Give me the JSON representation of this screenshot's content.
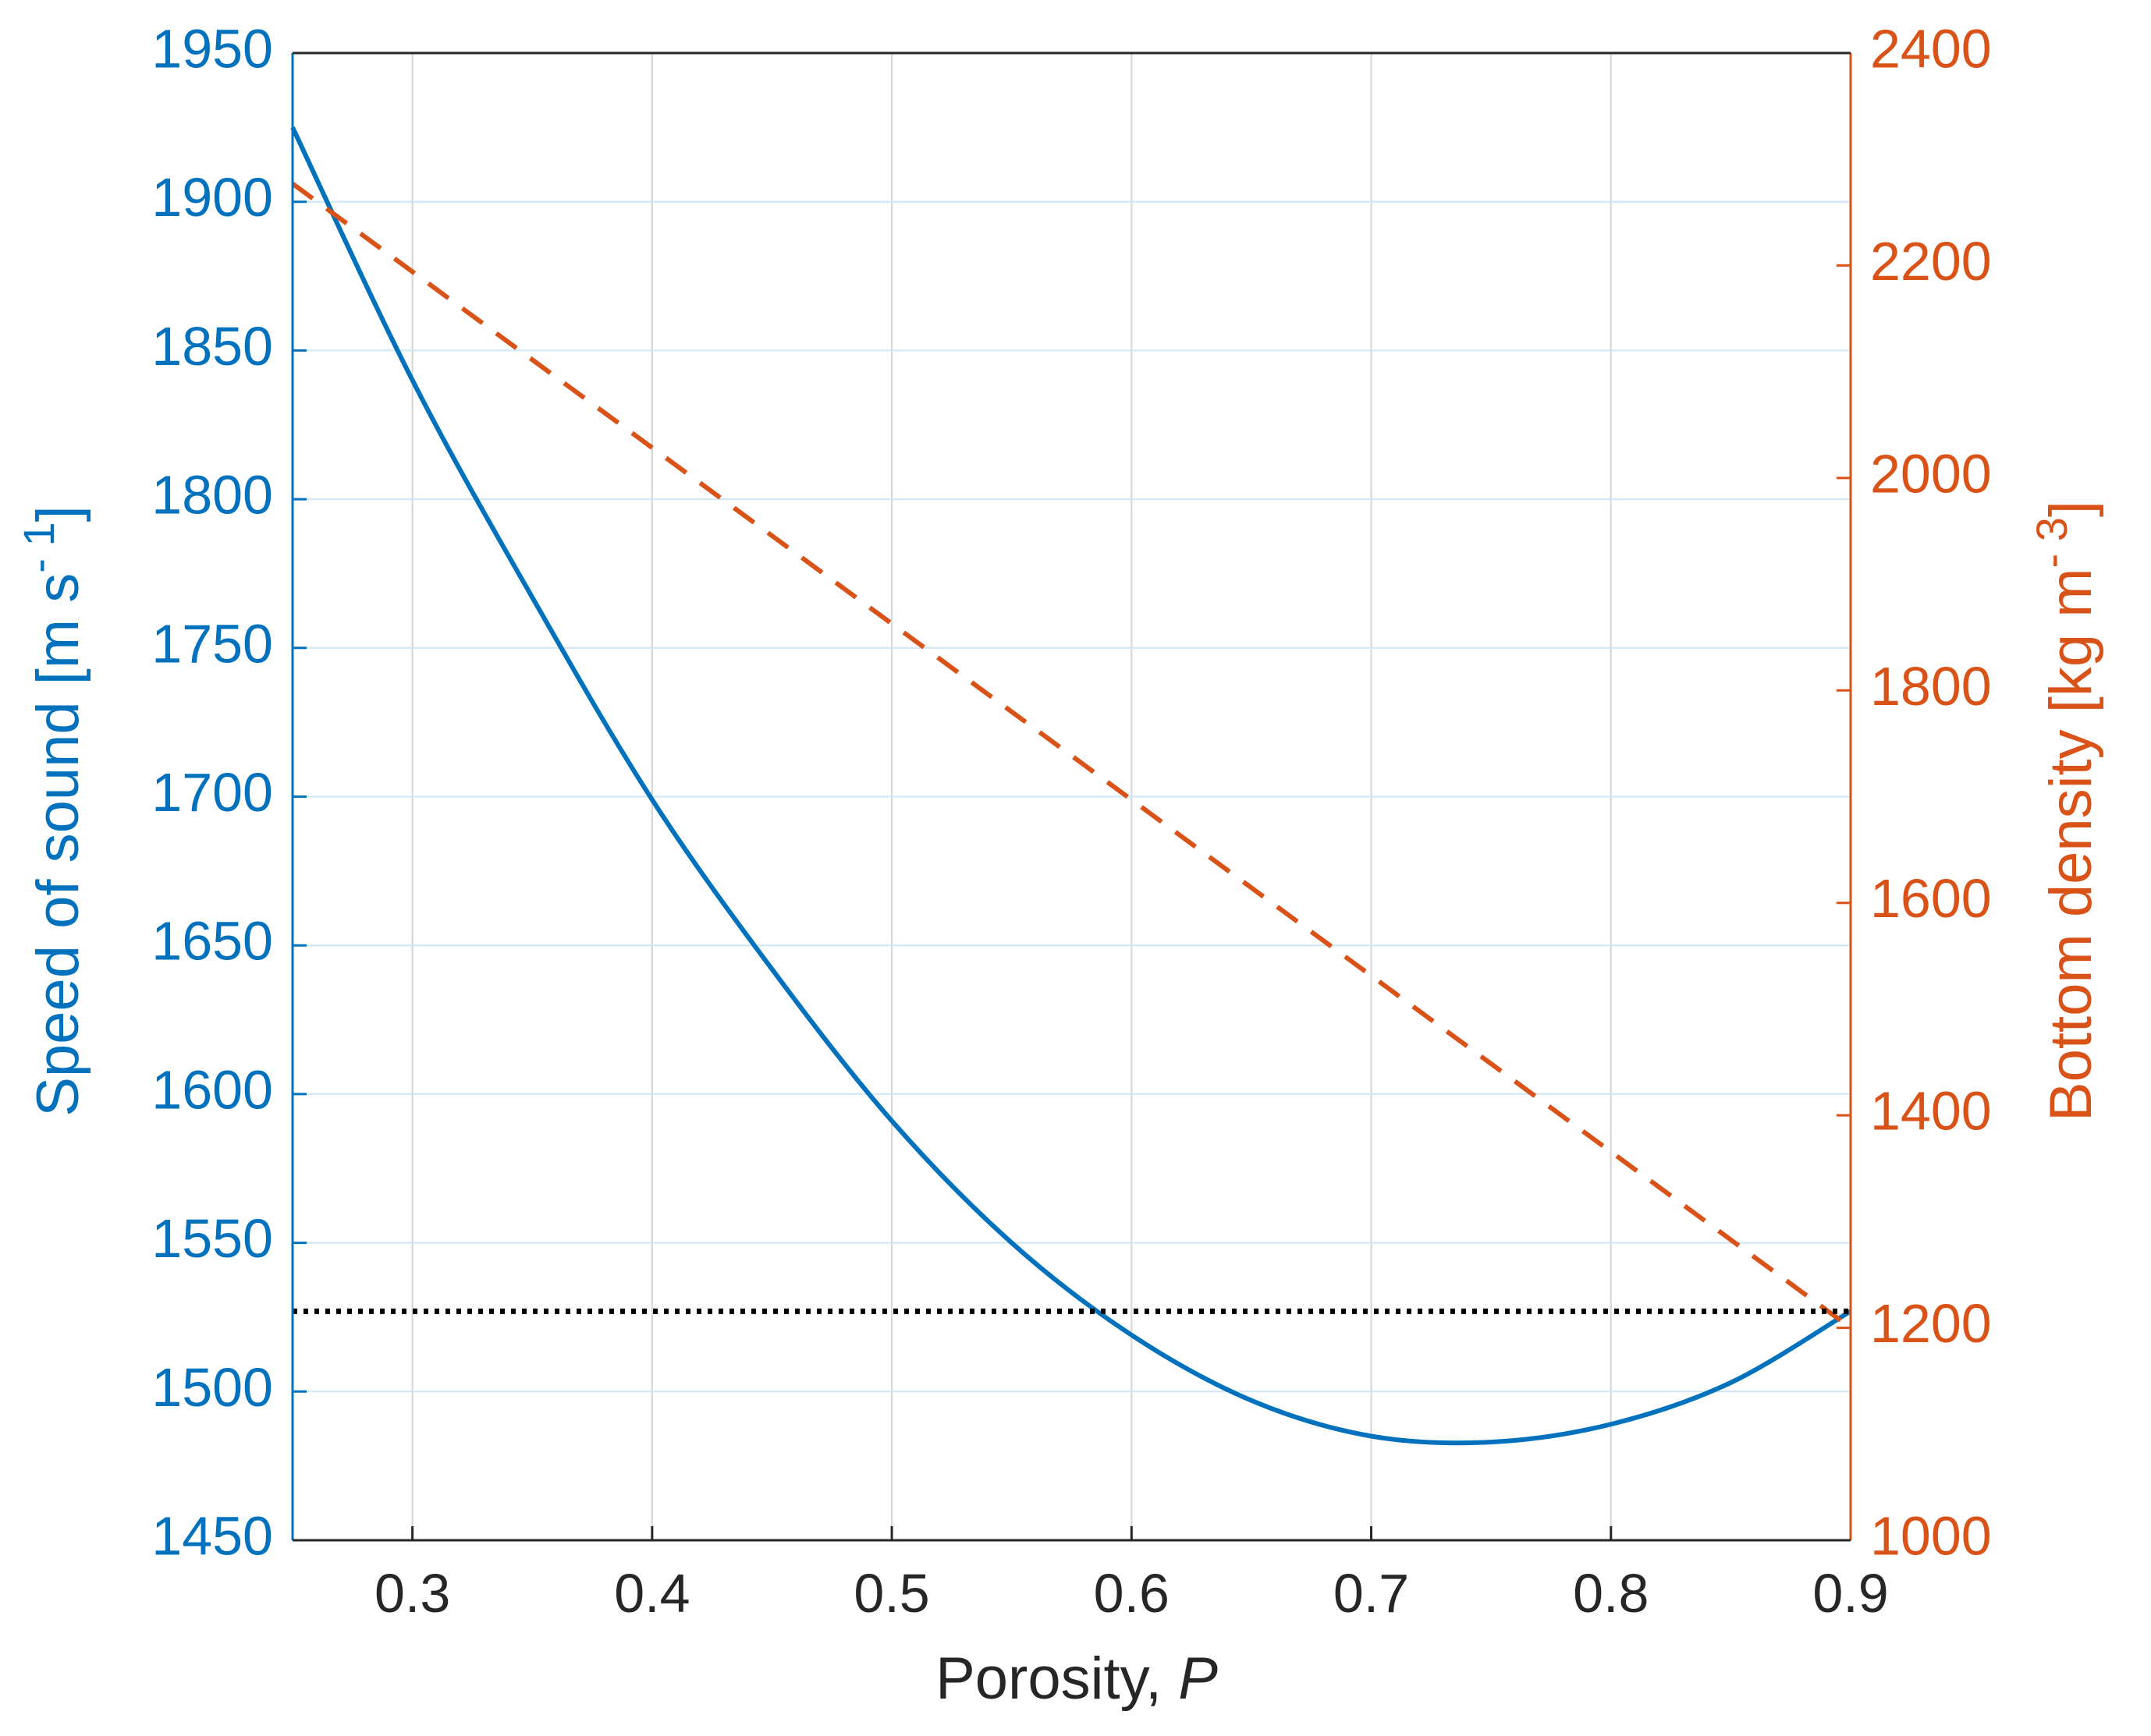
{
  "chart_data": {
    "type": "line",
    "xlabel": "Porosity, ",
    "xlabel_var": "P",
    "ylabel_left": {
      "main": "Speed of sound [m s",
      "sup": "- 1",
      "close": "]"
    },
    "ylabel_right": {
      "main": "Bottom density [kg m",
      "sup": "- 3",
      "close": "]"
    },
    "xlim": [
      0.25,
      0.9
    ],
    "ylim_left": [
      1450,
      1950
    ],
    "ylim_right": [
      1000,
      2400
    ],
    "xticks": [
      "0.3",
      "0.4",
      "0.5",
      "0.6",
      "0.7",
      "0.8",
      "0.9"
    ],
    "yticks_left": [
      "1450",
      "1500",
      "1550",
      "1600",
      "1650",
      "1700",
      "1750",
      "1800",
      "1850",
      "1900",
      "1950"
    ],
    "yticks_right": [
      "1000",
      "1200",
      "1400",
      "1600",
      "1800",
      "2000",
      "2200",
      "2400"
    ],
    "grid": true,
    "colors": {
      "left_axis": "#0072BD",
      "right_axis": "#D95319",
      "reference": "#000000",
      "grid": "#d4d4d4",
      "axis": "#262626"
    },
    "series": [
      {
        "axis": "left",
        "style": "solid",
        "color": "#0072BD",
        "x": [
          0.25,
          0.3,
          0.35,
          0.4,
          0.45,
          0.5,
          0.55,
          0.6,
          0.65,
          0.7,
          0.75,
          0.8,
          0.85,
          0.9
        ],
        "y": [
          1925,
          1840,
          1767,
          1699,
          1642,
          1591,
          1550,
          1519,
          1497,
          1485,
          1483,
          1489,
          1503,
          1527
        ]
      },
      {
        "axis": "right",
        "style": "dashed",
        "color": "#D95319",
        "x": [
          0.25,
          0.9
        ],
        "y": [
          2277,
          1200
        ]
      },
      {
        "axis": "left",
        "style": "dotted",
        "color": "#000000",
        "x": [
          0.25,
          0.9
        ],
        "y": [
          1527,
          1527
        ]
      }
    ]
  }
}
